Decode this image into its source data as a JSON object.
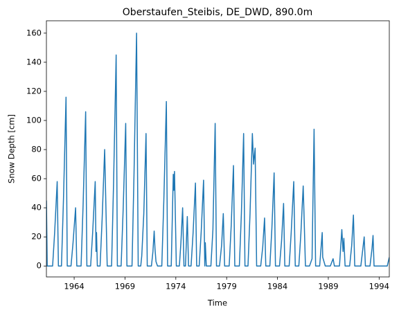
{
  "chart_data": {
    "type": "line",
    "title": "Oberstaufen_Steibis, DE_DWD, 890.0m",
    "x_label": "Time",
    "y_label": "Snow Depth [cm]",
    "color": "#1f77b4",
    "grid": false,
    "xlim": [
      1961.27,
      1995
    ],
    "xticks": [
      1964,
      1969,
      1974,
      1979,
      1984,
      1989,
      1994
    ],
    "ylim": [
      -7.5,
      168.5
    ],
    "yticks": [
      0,
      20,
      40,
      60,
      80,
      100,
      120,
      140,
      160
    ],
    "x": [
      1961.27,
      1961.35,
      1961.88,
      1962.08,
      1962.33,
      1962.45,
      1962.75,
      1962.95,
      1963.2,
      1963.32,
      1963.69,
      1963.89,
      1964.14,
      1964.26,
      1964.68,
      1964.88,
      1965.13,
      1965.25,
      1965.62,
      1965.82,
      1966.07,
      1966.15,
      1966.2,
      1966.28,
      1966.55,
      1966.75,
      1967,
      1967.25,
      1967.68,
      1967.88,
      1968.13,
      1968.25,
      1968.62,
      1968.82,
      1969.07,
      1969.19,
      1969.69,
      1969.89,
      1970.14,
      1970.3,
      1970.55,
      1970.65,
      1970.85,
      1971.07,
      1971.19,
      1971.6,
      1971.75,
      1971.87,
      1971.95,
      1972.05,
      1972.2,
      1972.62,
      1972.82,
      1973.07,
      1973.19,
      1973.55,
      1973.75,
      1973.8,
      1973.87,
      1974.05,
      1974.35,
      1974.5,
      1974.67,
      1974.8,
      1974.95,
      1975.13,
      1975.25,
      1975.5,
      1975.7,
      1975.93,
      1976.05,
      1976.3,
      1976.5,
      1976.73,
      1976.85,
      1976.9,
      1977,
      1977.45,
      1977.65,
      1977.87,
      1978,
      1978.3,
      1978.5,
      1978.67,
      1978.8,
      1979.25,
      1979.45,
      1979.67,
      1979.8,
      1980.25,
      1980.45,
      1980.67,
      1980.8,
      1981.1,
      1981.3,
      1981.53,
      1981.65,
      1981.8,
      1981.95,
      1982.35,
      1982.55,
      1982.73,
      1982.85,
      1983.25,
      1983.45,
      1983.67,
      1983.8,
      1984.2,
      1984.4,
      1984.6,
      1984.72,
      1985.15,
      1985.35,
      1985.6,
      1985.75,
      1986.1,
      1986.3,
      1986.53,
      1986.6,
      1986.75,
      1987.15,
      1987.4,
      1987.6,
      1987.75,
      1988.15,
      1988.4,
      1988.45,
      1988.7,
      1989.2,
      1989.47,
      1989.6,
      1990.1,
      1990.33,
      1990.45,
      1990.53,
      1990.65,
      1991.1,
      1991.3,
      1991.47,
      1991.6,
      1992.2,
      1992.4,
      1992.53,
      1992.65,
      1993.1,
      1993.3,
      1993.4,
      1993.5,
      1994.8,
      1995
    ],
    "values": [
      45,
      0,
      0,
      23,
      58,
      0,
      0,
      46,
      116,
      0,
      0,
      16,
      40,
      0,
      0,
      42,
      106,
      0,
      0,
      23,
      58,
      10,
      23,
      0,
      0,
      32,
      80,
      0,
      0,
      58,
      145,
      0,
      0,
      39,
      98,
      0,
      0,
      64,
      160,
      0,
      0,
      7,
      36,
      91,
      0,
      0,
      10,
      24,
      12,
      3,
      0,
      0,
      45,
      113,
      0,
      0,
      63,
      52,
      65,
      0,
      0,
      16,
      40,
      0,
      0,
      34,
      0,
      0,
      23,
      57,
      0,
      0,
      24,
      59,
      0,
      16,
      0,
      0,
      25,
      98,
      0,
      0,
      14,
      36,
      0,
      0,
      28,
      69,
      0,
      0,
      36,
      91,
      0,
      0,
      36,
      91,
      70,
      81,
      0,
      0,
      13,
      33,
      0,
      0,
      26,
      64,
      0,
      0,
      17,
      43,
      0,
      0,
      23,
      58,
      0,
      0,
      22,
      55,
      38,
      0,
      0,
      5,
      94,
      0,
      0,
      23,
      6,
      0,
      0,
      5,
      0,
      0,
      25,
      10,
      19,
      0,
      0,
      14,
      35,
      0,
      0,
      12,
      20,
      0,
      0,
      12,
      21,
      0,
      0,
      6
    ]
  }
}
